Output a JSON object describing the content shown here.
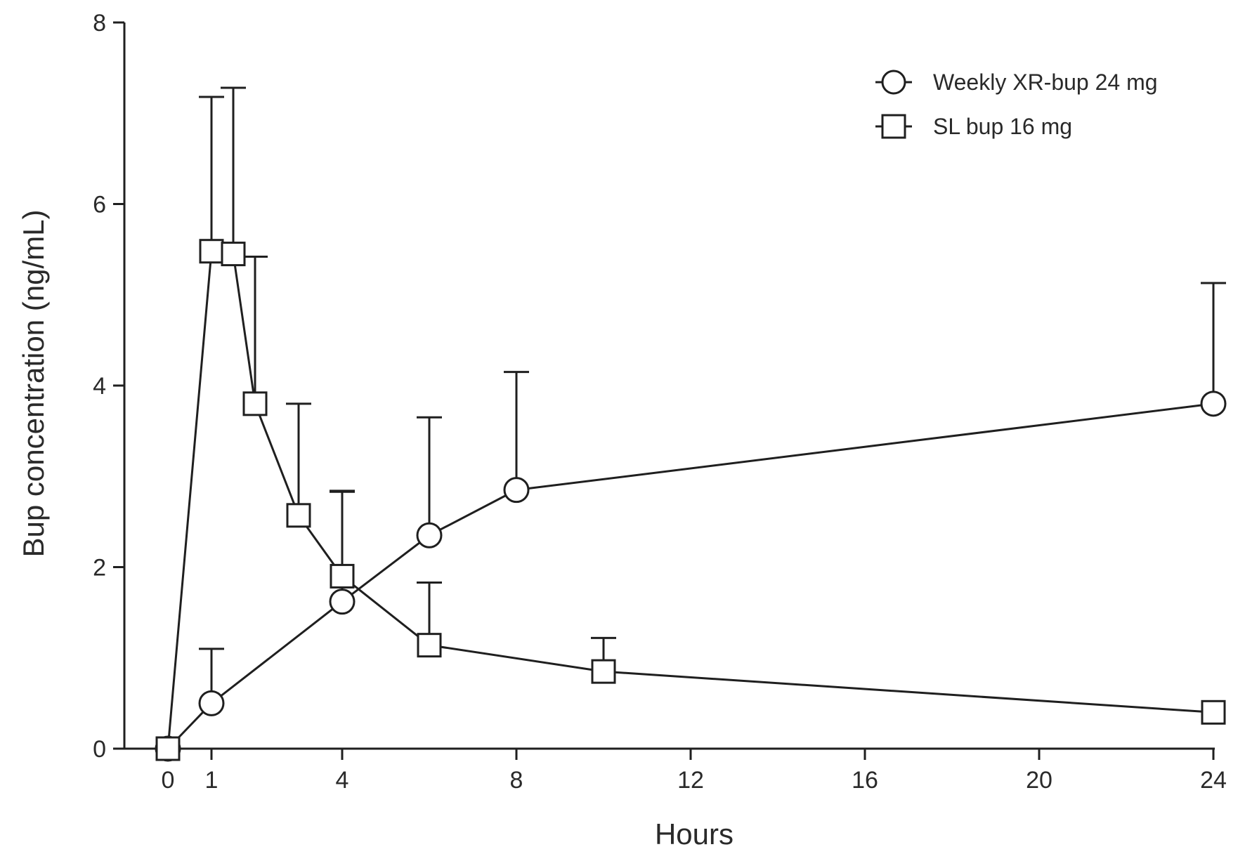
{
  "chart_data": {
    "type": "line",
    "xlabel": "Hours",
    "ylabel": "Bup concentration (ng/mL)",
    "xlim": [
      0,
      24
    ],
    "ylim": [
      0,
      8
    ],
    "xticks": [
      0,
      1,
      4,
      8,
      12,
      16,
      20,
      24
    ],
    "yticks": [
      0,
      2,
      4,
      6,
      8
    ],
    "grid": false,
    "legend_position": "top-right",
    "error_bars": "upper only (+SD)",
    "series": [
      {
        "name": "Weekly XR-bup 24 mg",
        "marker": "circle",
        "points": [
          {
            "x": 0,
            "y": 0,
            "err": 0
          },
          {
            "x": 1,
            "y": 0.5,
            "err": 0.6
          },
          {
            "x": 4,
            "y": 1.62,
            "err": 1.22
          },
          {
            "x": 6,
            "y": 2.35,
            "err": 1.3
          },
          {
            "x": 8,
            "y": 2.85,
            "err": 1.3
          },
          {
            "x": 24,
            "y": 3.8,
            "err": 1.33
          }
        ]
      },
      {
        "name": "SL bup 16 mg",
        "marker": "square",
        "points": [
          {
            "x": 0,
            "y": 0,
            "err": 0
          },
          {
            "x": 1,
            "y": 5.48,
            "err": 1.7
          },
          {
            "x": 1.5,
            "y": 5.45,
            "err": 1.83
          },
          {
            "x": 2,
            "y": 3.8,
            "err": 1.62
          },
          {
            "x": 3,
            "y": 2.57,
            "err": 1.23
          },
          {
            "x": 4,
            "y": 1.9,
            "err": 0.93
          },
          {
            "x": 6,
            "y": 1.14,
            "err": 0.69
          },
          {
            "x": 10,
            "y": 0.85,
            "err": 0.37
          },
          {
            "x": 24,
            "y": 0.4,
            "err": 0
          }
        ]
      }
    ]
  }
}
